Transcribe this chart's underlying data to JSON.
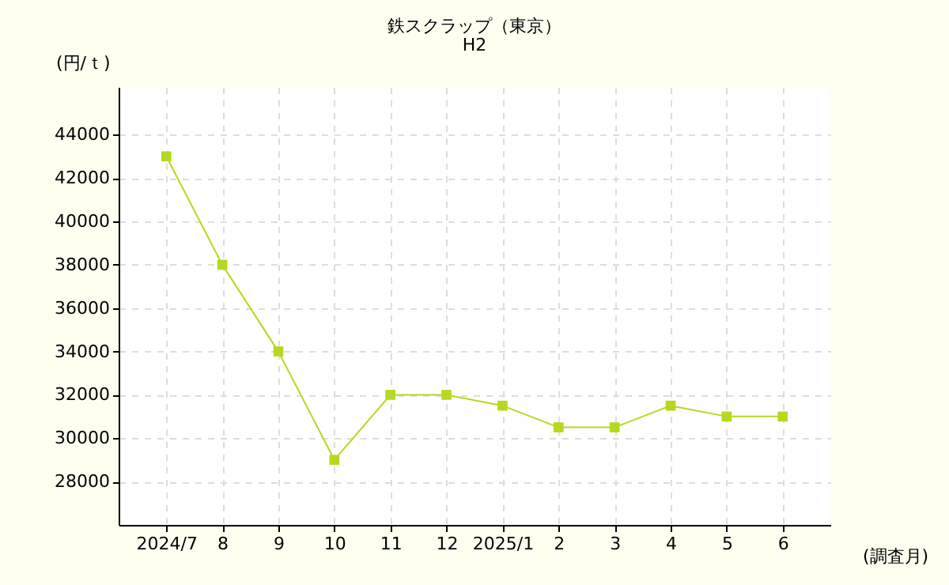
{
  "chart_data": {
    "type": "line",
    "title": "鉄スクラップ（東京）",
    "subtitle": "H2",
    "ylabel": "(円/ｔ)",
    "xlabel": "(調査月)",
    "categories": [
      "2024/7",
      "8",
      "9",
      "10",
      "11",
      "12",
      "2025/1",
      "2",
      "3",
      "4",
      "5",
      "6"
    ],
    "series": [
      {
        "color": "#b5d91f",
        "values": [
          43000,
          38000,
          34000,
          29000,
          32000,
          32000,
          31500,
          30500,
          30500,
          31500,
          31000,
          31000
        ]
      }
    ],
    "ylim": [
      26000,
      46200
    ],
    "yticks": [
      28000,
      30000,
      32000,
      34000,
      36000,
      38000,
      40000,
      42000,
      44000
    ],
    "grid": true,
    "marker": "square",
    "line_style": "solid"
  }
}
